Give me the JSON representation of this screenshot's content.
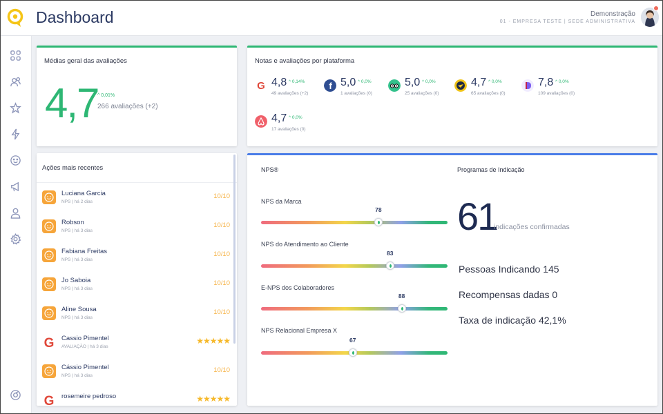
{
  "header": {
    "title": "Dashboard",
    "user_name": "Demonstração",
    "user_company": "01 - EMPRESA TESTE | SEDE ADMINISTRATIVA"
  },
  "sidebar": {
    "items": [
      {
        "icon": "grid-icon"
      },
      {
        "icon": "users-icon"
      },
      {
        "icon": "star-icon"
      },
      {
        "icon": "lightning-icon"
      },
      {
        "icon": "smiley-icon"
      },
      {
        "icon": "megaphone-icon"
      },
      {
        "icon": "user-icon"
      },
      {
        "icon": "gear-icon"
      },
      {
        "icon": "help-icon"
      }
    ]
  },
  "overall": {
    "title": "Médias geral das avaliações",
    "score": "4,7",
    "delta": "^ 0,01%",
    "count": "266 avaliações (+2)"
  },
  "platforms": {
    "title": "Notas e avaliações por plataforma",
    "items": [
      {
        "icon": "google-icon",
        "color": "#e0483a",
        "score": "4,8",
        "delta": "^ 0,14%",
        "count": "49 avaliações (+2)"
      },
      {
        "icon": "facebook-icon",
        "color": "#2f4e92",
        "score": "5,0",
        "delta": "^ 0,0%",
        "count": "1 avaliações (0)"
      },
      {
        "icon": "tripadvisor-icon",
        "color": "#34c18c",
        "score": "5,0",
        "delta": "^ 0,0%",
        "count": "25 avaliações (0)"
      },
      {
        "icon": "hotel-icon",
        "color": "#f0c419",
        "score": "4,7",
        "delta": "^ 0,0%",
        "count": "65 avaliações (0)"
      },
      {
        "icon": "platform-d-icon",
        "color": "#7b5cf0",
        "score": "7,8",
        "delta": "^ 0,0%",
        "count": "109 avaliações (0)"
      },
      {
        "icon": "airbnb-icon",
        "color": "#f0606a",
        "score": "4,7",
        "delta": "^ 0,0%",
        "count": "17 avaliações (0)"
      }
    ]
  },
  "recent": {
    "title": "Ações mais recentes",
    "items": [
      {
        "name": "Luciana Garcia",
        "meta": "NPS | há 2 dias",
        "score": "10/10",
        "type": "nps"
      },
      {
        "name": "Robson",
        "meta": "NPS | há 3 dias",
        "score": "10/10",
        "type": "nps"
      },
      {
        "name": "Fabiana Freitas",
        "meta": "NPS | há 3 dias",
        "score": "10/10",
        "type": "nps"
      },
      {
        "name": "Jo Saboia",
        "meta": "NPS | há 3 dias",
        "score": "10/10",
        "type": "nps"
      },
      {
        "name": "Aline Sousa",
        "meta": "NPS | há 3 dias",
        "score": "10/10",
        "type": "nps"
      },
      {
        "name": "Cassio Pimentel",
        "meta": "AVALIAÇÃO | há 3 dias",
        "score": "★★★★★",
        "type": "review"
      },
      {
        "name": "Cássio Pimentel",
        "meta": "NPS | há 3 dias",
        "score": "10/10",
        "type": "nps"
      },
      {
        "name": "rosemeire pedroso",
        "meta": "",
        "score": "★★★★★",
        "type": "review"
      }
    ]
  },
  "nps": {
    "title": "NPS®",
    "items": [
      {
        "label": "NPS da Marca",
        "value": 78
      },
      {
        "label": "NPS do Atendimento ao Cliente",
        "value": 83
      },
      {
        "label": "E-NPS dos Colaboradores",
        "value": 88
      },
      {
        "label": "NPS Relacional Empresa X",
        "value": 67
      }
    ]
  },
  "referral": {
    "title": "Programas de Indicação",
    "count": "61",
    "count_label": "indicações confirmadas",
    "line1": "Pessoas Indicando 145",
    "line2": "Recompensas dadas 0",
    "line3": "Taxa de indicação 42,1%"
  }
}
